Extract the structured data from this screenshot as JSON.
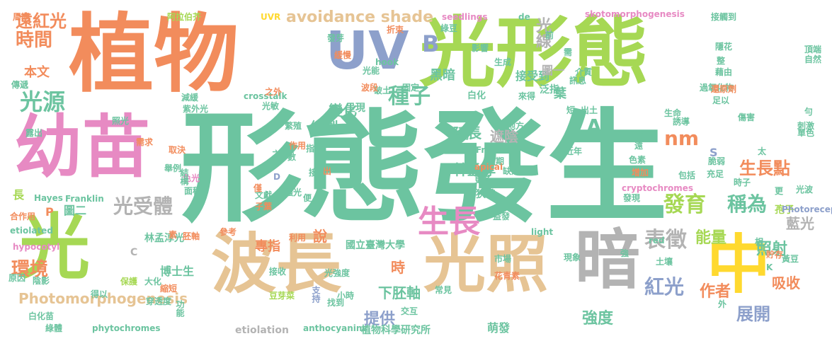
{
  "palette": {
    "green": "#6cc4a0",
    "orange": "#f28c5c",
    "lime": "#a6d854",
    "tan": "#e6c494",
    "pink": "#e78ac3",
    "blue": "#8da0cb",
    "gray": "#b3b3b3",
    "yellow": "#ffd92f"
  },
  "words": [
    {
      "text": "形態發生",
      "color": "green"
    },
    {
      "text": "植物",
      "color": "orange"
    },
    {
      "text": "光形態",
      "color": "lime"
    },
    {
      "text": "幼苗",
      "color": "pink"
    },
    {
      "text": "光",
      "color": "lime"
    },
    {
      "text": "波長",
      "color": "tan"
    },
    {
      "text": "光照",
      "color": "tan"
    },
    {
      "text": "暗",
      "color": "gray"
    },
    {
      "text": "中",
      "color": "yellow"
    },
    {
      "text": "UV",
      "color": "blue"
    },
    {
      "text": "遠紅光",
      "color": "orange"
    },
    {
      "text": "時間",
      "color": "orange"
    },
    {
      "text": "光源",
      "color": "green"
    },
    {
      "text": "本文",
      "color": "orange"
    },
    {
      "text": "avoidance shade",
      "color": "tan"
    },
    {
      "text": "B",
      "color": "blue"
    },
    {
      "text": "光線",
      "color": "gray"
    },
    {
      "text": "種子",
      "color": "green"
    },
    {
      "text": "黑暗",
      "color": "green"
    },
    {
      "text": "變化",
      "color": "green"
    },
    {
      "text": "繪製",
      "color": "green"
    },
    {
      "text": "光受體",
      "color": "gray"
    },
    {
      "text": "生長",
      "color": "pink"
    },
    {
      "text": "發育",
      "color": "lime"
    },
    {
      "text": "稱為",
      "color": "green"
    },
    {
      "text": "nm",
      "color": "orange"
    },
    {
      "text": "A",
      "color": "green"
    },
    {
      "text": "表徵",
      "color": "gray"
    },
    {
      "text": "紅光",
      "color": "blue"
    },
    {
      "text": "環境",
      "color": "orange"
    },
    {
      "text": "Photomorphogenesis",
      "color": "tan"
    },
    {
      "text": "林孟淳",
      "color": "green"
    },
    {
      "text": "延長",
      "color": "green"
    },
    {
      "text": "遮陰",
      "color": "gray"
    },
    {
      "text": "生長點",
      "color": "orange"
    },
    {
      "text": "能量",
      "color": "lime"
    },
    {
      "text": "照射",
      "color": "green"
    },
    {
      "text": "藍光",
      "color": "gray"
    },
    {
      "text": "吸收",
      "color": "orange"
    },
    {
      "text": "作者",
      "color": "orange"
    },
    {
      "text": "強度",
      "color": "green"
    },
    {
      "text": "展開",
      "color": "blue"
    },
    {
      "text": "下胚軸",
      "color": "green"
    },
    {
      "text": "提供",
      "color": "blue"
    },
    {
      "text": "時",
      "color": "orange"
    },
    {
      "text": "說",
      "color": "orange"
    },
    {
      "text": "專指",
      "color": "orange"
    },
    {
      "text": "國立臺灣大學",
      "color": "green"
    },
    {
      "text": "植物科學研究所",
      "color": "green"
    },
    {
      "text": "etiolation",
      "color": "gray"
    },
    {
      "text": "anthocyanins",
      "color": "green"
    },
    {
      "text": "phytochromes",
      "color": "green"
    },
    {
      "text": "萌發",
      "color": "green"
    },
    {
      "text": "博士生",
      "color": "green"
    },
    {
      "text": "林孟淳光",
      "color": "green"
    },
    {
      "text": "圖二",
      "color": "green"
    },
    {
      "text": "P",
      "color": "orange"
    },
    {
      "text": "長",
      "color": "lime"
    },
    {
      "text": "接受到",
      "color": "green"
    },
    {
      "text": "圖一",
      "color": "gray"
    },
    {
      "text": "泛指",
      "color": "green"
    },
    {
      "text": "葉",
      "color": "green"
    },
    {
      "text": "狹義",
      "color": "green"
    },
    {
      "text": "孢子",
      "color": "lime"
    },
    {
      "text": "S",
      "color": "blue"
    },
    {
      "text": "C",
      "color": "gray"
    },
    {
      "text": "呈現",
      "color": "green"
    },
    {
      "text": "白化",
      "color": "green"
    },
    {
      "text": "光能",
      "color": "green"
    },
    {
      "text": "破土",
      "color": "green"
    },
    {
      "text": "來得",
      "color": "green"
    },
    {
      "text": "周期",
      "color": "orange"
    },
    {
      "text": "阿拉伯芥",
      "color": "lime"
    },
    {
      "text": "UVR",
      "color": "yellow"
    },
    {
      "text": "seedlings",
      "color": "pink"
    },
    {
      "text": "skotomorphogenesis",
      "color": "pink"
    },
    {
      "text": "接觸到",
      "color": "green"
    },
    {
      "text": "傳遞",
      "color": "green"
    },
    {
      "text": "減緩",
      "color": "green"
    },
    {
      "text": "紫外光",
      "color": "green"
    },
    {
      "text": "穿透性",
      "color": "green"
    },
    {
      "text": "照光",
      "color": "green"
    },
    {
      "text": "需求",
      "color": "orange"
    },
    {
      "text": "露出",
      "color": "green"
    },
    {
      "text": "取決",
      "color": "orange"
    },
    {
      "text": "舉例",
      "color": "green"
    },
    {
      "text": "色光",
      "color": "pink"
    },
    {
      "text": "面積",
      "color": "green"
    },
    {
      "text": "結構",
      "color": "green"
    },
    {
      "text": "Hayes",
      "color": "green"
    },
    {
      "text": "Franklin",
      "color": "green"
    },
    {
      "text": "合作用",
      "color": "orange"
    },
    {
      "text": "etiolated",
      "color": "green"
    },
    {
      "text": "hypocotyl",
      "color": "pink"
    },
    {
      "text": "原因",
      "color": "green"
    },
    {
      "text": "陰影",
      "color": "green"
    },
    {
      "text": "保護",
      "color": "lime"
    },
    {
      "text": "得以",
      "color": "green"
    },
    {
      "text": "大化",
      "color": "green"
    },
    {
      "text": "穿透度",
      "color": "green"
    },
    {
      "text": "白化苗",
      "color": "green"
    },
    {
      "text": "綠體",
      "color": "green"
    },
    {
      "text": "縮短",
      "color": "orange"
    },
    {
      "text": "功能",
      "color": "green"
    },
    {
      "text": "素",
      "color": "orange"
    },
    {
      "text": "胚軸",
      "color": "orange"
    },
    {
      "text": "文獻",
      "color": "green"
    },
    {
      "text": "子葉",
      "color": "orange"
    },
    {
      "text": "參考",
      "color": "orange"
    },
    {
      "text": "利用",
      "color": "orange"
    },
    {
      "text": "接收",
      "color": "green"
    },
    {
      "text": "豆芽菜",
      "color": "lime"
    },
    {
      "text": "支持",
      "color": "blue"
    },
    {
      "text": "光強度",
      "color": "green"
    },
    {
      "text": "小時",
      "color": "green"
    },
    {
      "text": "找到",
      "color": "green"
    },
    {
      "text": "常見",
      "color": "green"
    },
    {
      "text": "花青素",
      "color": "orange"
    },
    {
      "text": "市場",
      "color": "green"
    },
    {
      "text": "light",
      "color": "green"
    },
    {
      "text": "益發",
      "color": "green"
    },
    {
      "text": "更多",
      "color": "green"
    },
    {
      "text": "apical",
      "color": "orange"
    },
    {
      "text": "缺乏",
      "color": "green"
    },
    {
      "text": "週期",
      "color": "green"
    },
    {
      "text": "Fraser",
      "color": "green"
    },
    {
      "text": "證明",
      "color": "green"
    },
    {
      "text": "地方",
      "color": "green"
    },
    {
      "text": "強光",
      "color": "green"
    },
    {
      "text": "便",
      "color": "green"
    },
    {
      "text": "接觸",
      "color": "green"
    },
    {
      "text": "出",
      "color": "orange"
    },
    {
      "text": "作用",
      "color": "orange"
    },
    {
      "text": "數",
      "color": "green"
    },
    {
      "text": "之下",
      "color": "green"
    },
    {
      "text": "D",
      "color": "blue"
    },
    {
      "text": "僅",
      "color": "orange"
    },
    {
      "text": "繁殖",
      "color": "green"
    },
    {
      "text": "光敏",
      "color": "green"
    },
    {
      "text": "crosstalk",
      "color": "green"
    },
    {
      "text": "之外",
      "color": "orange"
    },
    {
      "text": "指",
      "color": "green"
    },
    {
      "text": "波段",
      "color": "orange"
    },
    {
      "text": "固定",
      "color": "green"
    },
    {
      "text": "強",
      "color": "green"
    },
    {
      "text": "hook",
      "color": "green"
    },
    {
      "text": "緩慢",
      "color": "orange"
    },
    {
      "text": "發芽",
      "color": "green"
    },
    {
      "text": "綠豆",
      "color": "green"
    },
    {
      "text": "折束",
      "color": "orange"
    },
    {
      "text": "影響",
      "color": "green"
    },
    {
      "text": "生成",
      "color": "green"
    },
    {
      "text": "de",
      "color": "green"
    },
    {
      "text": "前",
      "color": "green"
    },
    {
      "text": "需",
      "color": "green"
    },
    {
      "text": "介質",
      "color": "green"
    },
    {
      "text": "隱花",
      "color": "green"
    },
    {
      "text": "整",
      "color": "green"
    },
    {
      "text": "頂端",
      "color": "green"
    },
    {
      "text": "藉由",
      "color": "green"
    },
    {
      "text": "自然",
      "color": "green"
    },
    {
      "text": "過氧化物",
      "color": "green"
    },
    {
      "text": "訊息",
      "color": "green"
    },
    {
      "text": "還原劑",
      "color": "orange"
    },
    {
      "text": "足以",
      "color": "green"
    },
    {
      "text": "短",
      "color": "green"
    },
    {
      "text": "出土",
      "color": "green"
    },
    {
      "text": "生命",
      "color": "green"
    },
    {
      "text": "勻",
      "color": "green"
    },
    {
      "text": "傷害",
      "color": "green"
    },
    {
      "text": "誘導",
      "color": "green"
    },
    {
      "text": "刺激",
      "color": "green"
    },
    {
      "text": "單色",
      "color": "green"
    },
    {
      "text": "迴避",
      "color": "green"
    },
    {
      "text": "遠",
      "color": "green"
    },
    {
      "text": "近年",
      "color": "green"
    },
    {
      "text": "脆弱",
      "color": "green"
    },
    {
      "text": "太",
      "color": "green"
    },
    {
      "text": "時子",
      "color": "green"
    },
    {
      "text": "充足",
      "color": "green"
    },
    {
      "text": "色素",
      "color": "green"
    },
    {
      "text": "增加",
      "color": "orange"
    },
    {
      "text": "包括",
      "color": "green"
    },
    {
      "text": "cryptochromes",
      "color": "pink"
    },
    {
      "text": "光波",
      "color": "green"
    },
    {
      "text": "更",
      "color": "green"
    },
    {
      "text": "發現",
      "color": "green"
    },
    {
      "text": "構造",
      "color": "green"
    },
    {
      "text": "Photoreceptor",
      "color": "blue"
    },
    {
      "text": "red",
      "color": "green"
    },
    {
      "text": "K",
      "color": "green"
    },
    {
      "text": "相",
      "color": "green"
    },
    {
      "text": "貯存",
      "color": "orange"
    },
    {
      "text": "黃豆",
      "color": "green"
    },
    {
      "text": "土壤",
      "color": "green"
    },
    {
      "text": "現象",
      "color": "green"
    },
    {
      "text": "交互",
      "color": "green"
    },
    {
      "text": "外",
      "color": "green"
    }
  ]
}
